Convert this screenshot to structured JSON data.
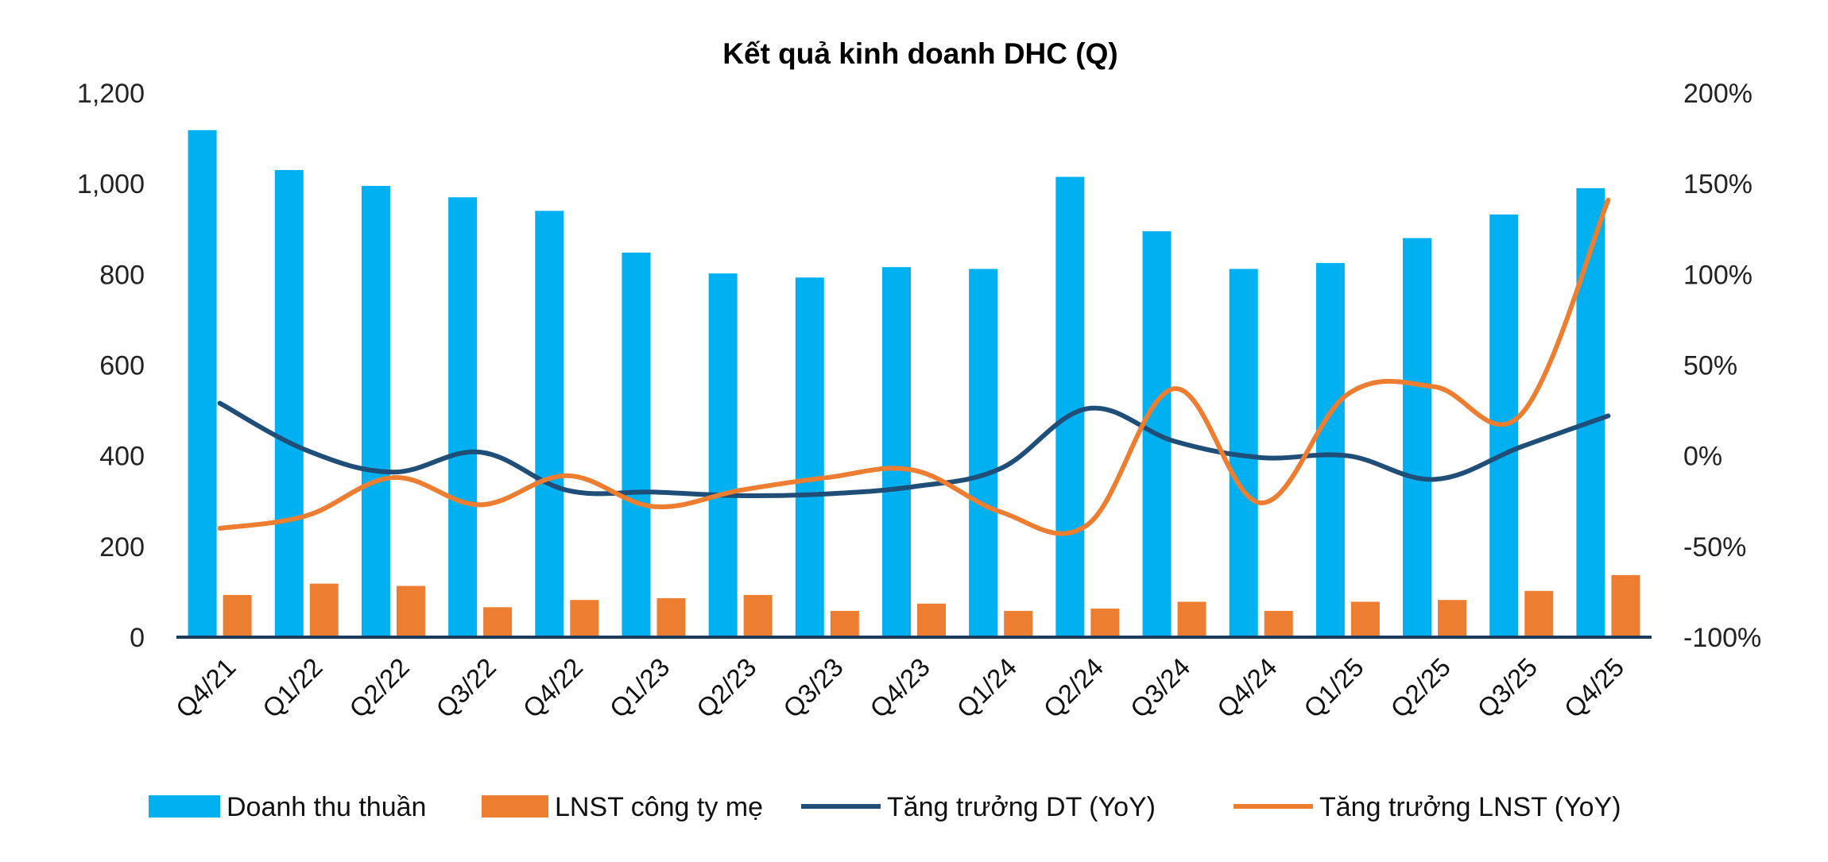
{
  "chart_data": {
    "type": "bar",
    "title": "Kết quả kinh doanh DHC (Q)",
    "categories": [
      "Q4/21",
      "Q1/22",
      "Q2/22",
      "Q3/22",
      "Q4/22",
      "Q1/23",
      "Q2/23",
      "Q3/23",
      "Q4/23",
      "Q1/24",
      "Q2/24",
      "Q3/24",
      "Q4/24",
      "Q1/25",
      "Q2/25",
      "Q3/25",
      "Q4/25"
    ],
    "y_left": {
      "min": 0,
      "max": 1200,
      "ticks": [
        "0",
        "200",
        "400",
        "600",
        "800",
        "1,000",
        "1,200"
      ]
    },
    "y_right": {
      "min": -100,
      "max": 200,
      "ticks": [
        "-100%",
        "-50%",
        "0%",
        "50%",
        "100%",
        "150%",
        "200%"
      ]
    },
    "series": [
      {
        "name": "Doanh thu thuần",
        "type": "bar",
        "axis": "left",
        "color": "#00B0F0",
        "values": [
          1118,
          1030,
          995,
          970,
          940,
          848,
          802,
          793,
          816,
          812,
          1015,
          895,
          812,
          825,
          880,
          932,
          990
        ]
      },
      {
        "name": "LNST công ty mẹ",
        "type": "bar",
        "axis": "left",
        "color": "#ED7D31",
        "values": [
          93,
          118,
          113,
          66,
          82,
          86,
          93,
          58,
          74,
          58,
          63,
          78,
          58,
          78,
          82,
          102,
          137
        ]
      },
      {
        "name": "Tăng trưởng DT (YoY)",
        "type": "line",
        "axis": "right",
        "color": "#1F4E79",
        "values": [
          29,
          3,
          -9,
          2,
          -19,
          -20,
          -22,
          -21,
          -17,
          -7,
          26,
          8,
          -1,
          0,
          -13,
          5,
          22
        ]
      },
      {
        "name": "Tăng trưởng LNST (YoY)",
        "type": "line",
        "axis": "right",
        "color": "#ED7D31",
        "values": [
          -40,
          -33,
          -12,
          -27,
          -11,
          -28,
          -19,
          -12,
          -8,
          -31,
          -38,
          37,
          -26,
          34,
          38,
          23,
          141
        ]
      }
    ],
    "legend_position": "bottom",
    "grid": false
  }
}
